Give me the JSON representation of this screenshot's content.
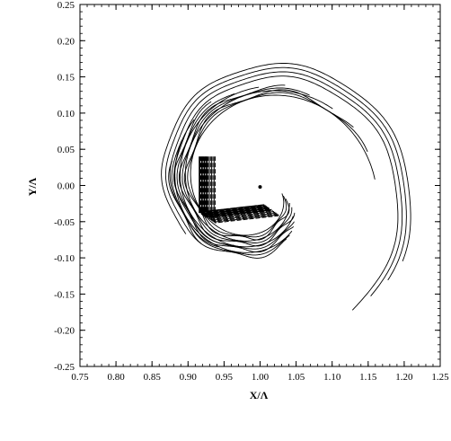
{
  "chart_data": {
    "type": "contour",
    "title": "",
    "xlabel": "X/Λ",
    "ylabel": "Y/Λ",
    "xlim": [
      0.75,
      1.25
    ],
    "ylim": [
      -0.25,
      0.25
    ],
    "x_ticks": [
      "0.75",
      "0.80",
      "0.85",
      "0.90",
      "0.95",
      "1.00",
      "1.05",
      "1.10",
      "1.15",
      "1.20",
      "1.25"
    ],
    "y_ticks": [
      "0.25",
      "0.20",
      "0.15",
      "0.10",
      "0.05",
      "0.00",
      "-0.05",
      "-0.10",
      "-0.15",
      "-0.20",
      "-0.25"
    ],
    "grid": false,
    "spiral_center": [
      1.0,
      -0.005
    ],
    "contour_levels": 12,
    "description_peak_region": {
      "x": [
        0.91,
        1.02
      ],
      "y": [
        -0.055,
        0.04
      ]
    }
  }
}
